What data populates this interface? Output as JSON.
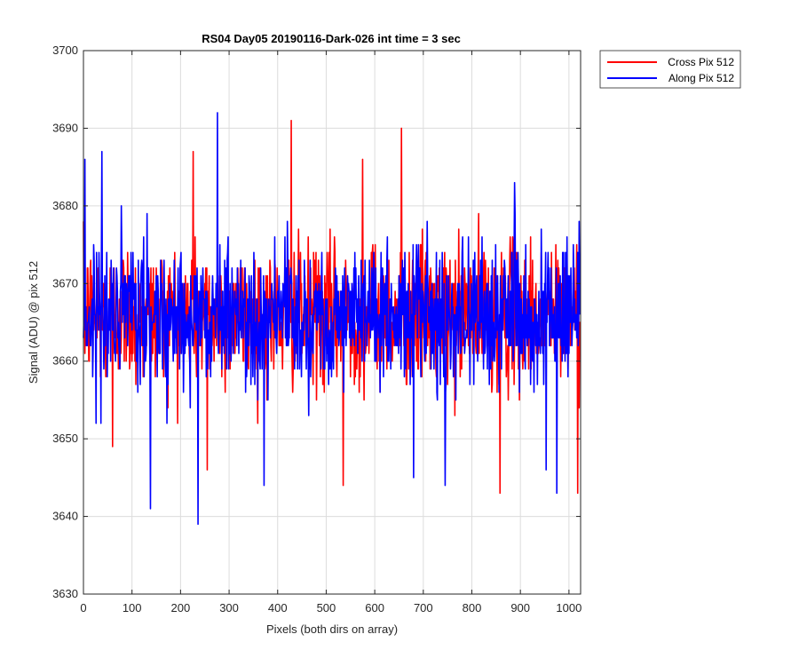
{
  "chart_data": {
    "type": "line",
    "title": "RS04 Day05 20190116-Dark-026 int time = 3 sec",
    "xlabel": "Pixels (both dirs on array)",
    "ylabel": "Signal (ADU) @ pix 512",
    "xlim": [
      0,
      1024
    ],
    "ylim": [
      3630,
      3700
    ],
    "xticks": [
      0,
      100,
      200,
      300,
      400,
      500,
      600,
      700,
      800,
      900,
      1000
    ],
    "yticks": [
      3630,
      3640,
      3650,
      3660,
      3670,
      3680,
      3690,
      3700
    ],
    "grid": true,
    "legend_position": "outside-top-right",
    "series": [
      {
        "name": "Cross Pix 512",
        "color": "#ff0000",
        "n_points": 1024,
        "mean": 3666,
        "spread": 4.5,
        "extremes": [
          [
            226,
            3687
          ],
          [
            428,
            3691
          ],
          [
            575,
            3686
          ],
          [
            655,
            3690
          ],
          [
            535,
            3644
          ],
          [
            858,
            3643
          ],
          [
            1018,
            3643
          ],
          [
            60,
            3649
          ],
          [
            255,
            3646
          ]
        ]
      },
      {
        "name": "Along Pix 512",
        "color": "#0000ff",
        "n_points": 1024,
        "mean": 3666,
        "spread": 4.5,
        "extremes": [
          [
            3,
            3686
          ],
          [
            38,
            3687
          ],
          [
            276,
            3692
          ],
          [
            138,
            3641
          ],
          [
            236,
            3639
          ],
          [
            372,
            3644
          ],
          [
            680,
            3645
          ],
          [
            745,
            3644
          ],
          [
            953,
            3646
          ],
          [
            975,
            3643
          ],
          [
            888,
            3683
          ]
        ]
      }
    ]
  }
}
